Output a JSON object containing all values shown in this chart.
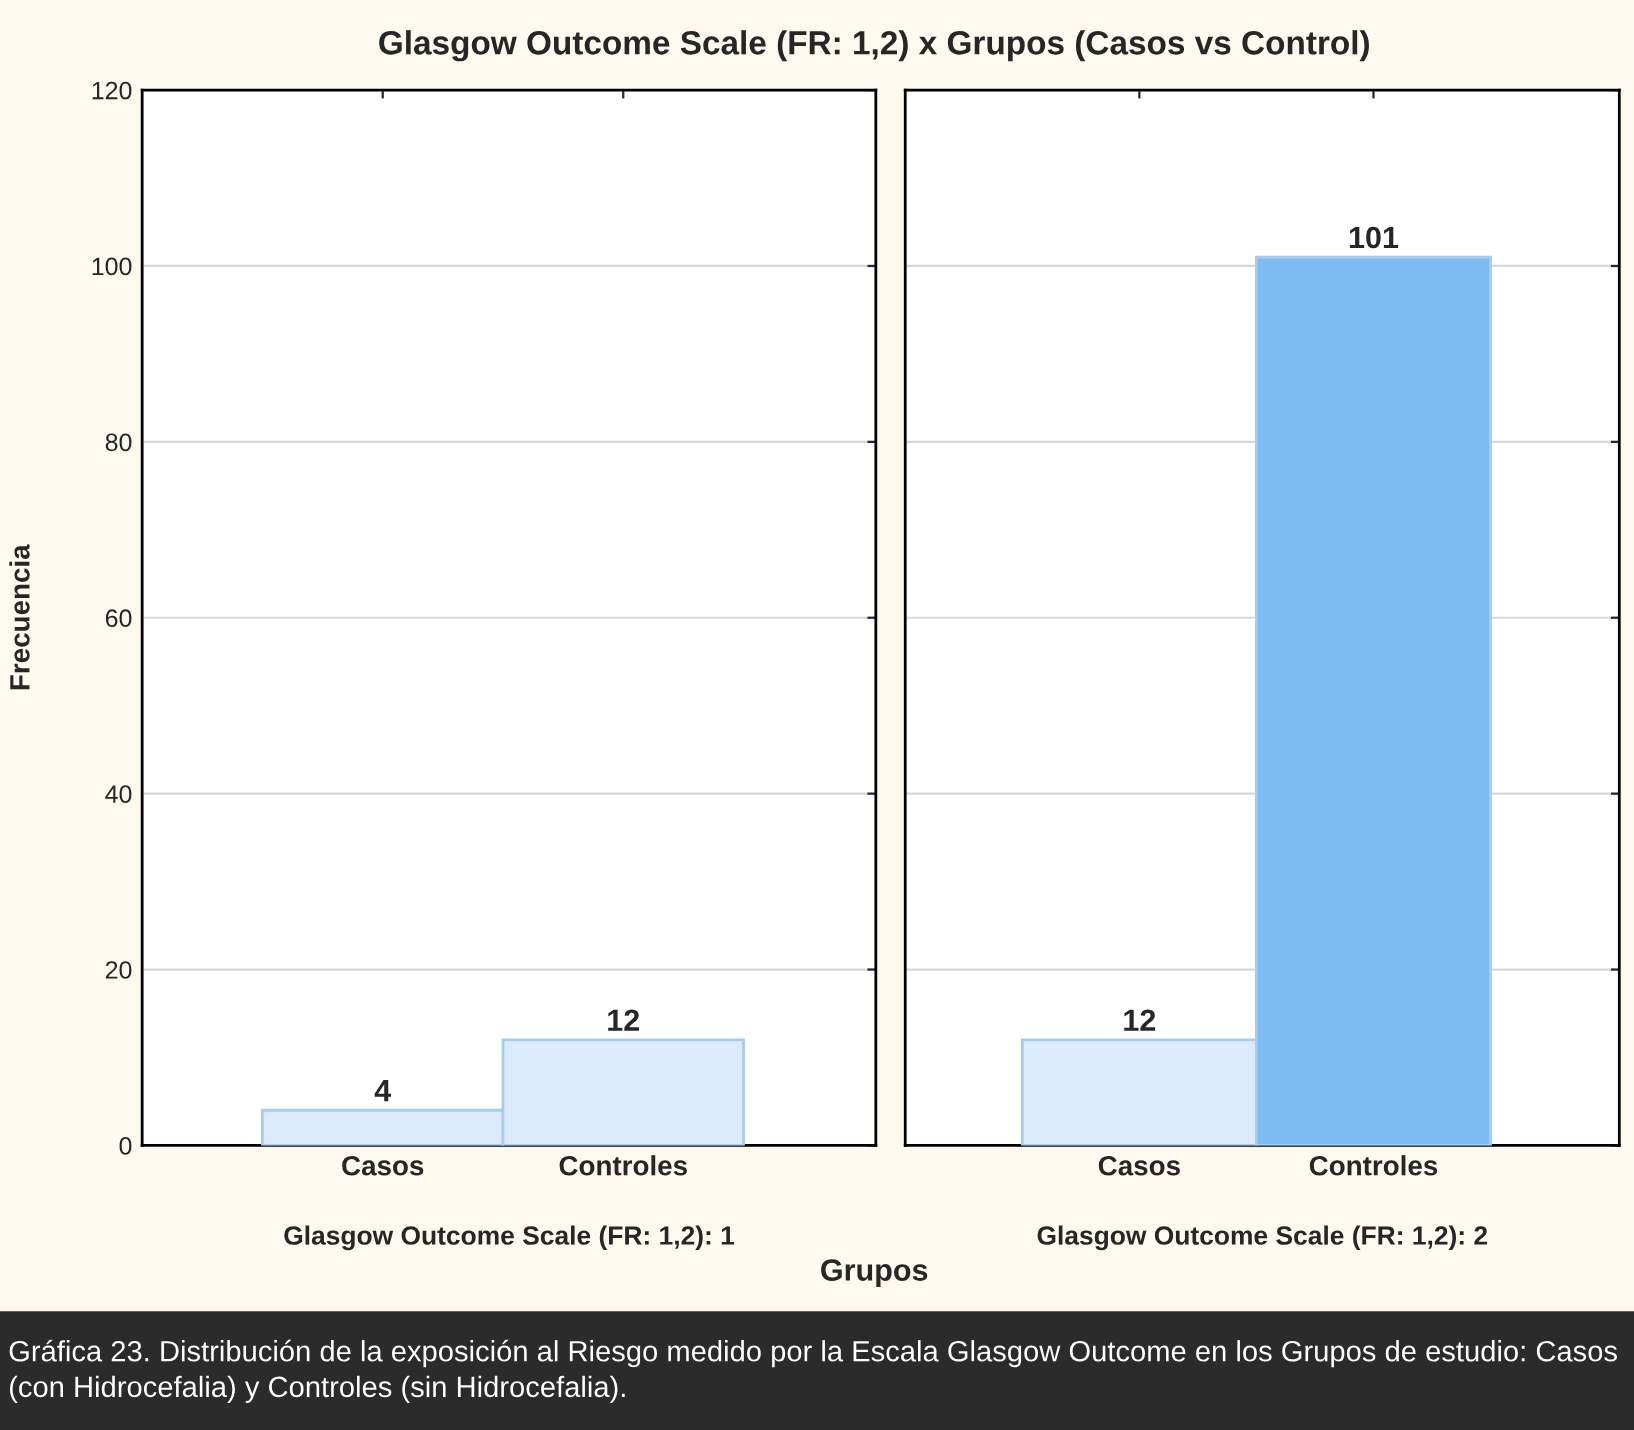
{
  "chart_data": [
    {
      "type": "bar",
      "title": "Glasgow Outcome Scale (FR: 1,2) x Grupos (Casos vs Control)",
      "ylabel": "Frecuencia",
      "xlabel": "Glasgow Outcome Scale (FR: 1,2): 1",
      "categories": [
        "Casos",
        "Controles"
      ],
      "values": [
        4,
        12
      ],
      "colors": [
        "#dcebfb",
        "#dcebfb"
      ],
      "data_labels": true,
      "ylim": [
        0,
        120
      ],
      "yticks": [
        0,
        20,
        40,
        60,
        80,
        100,
        120
      ],
      "grid": "y",
      "annotations": [
        "Grupos",
        "Gráfica 23. Distribución de la exposición al Riesgo medido por la Escala Glasgow Outcome en los Grupos de estudio: Casos (con Hidrocefalia) y Controles (sin Hidrocefalia)."
      ]
    },
    {
      "type": "bar",
      "xlabel": "Glasgow Outcome Scale (FR: 1,2): 2",
      "categories": [
        "Casos",
        "Controles"
      ],
      "values": [
        12,
        101
      ],
      "colors": [
        "#dcebfb",
        "#7dbcf3"
      ],
      "data_labels": true,
      "ylim": [
        0,
        120
      ],
      "yticks": [
        0,
        20,
        40,
        60,
        80,
        100,
        120
      ],
      "grid": "y",
      "tick_labels": "x"
    }
  ]
}
